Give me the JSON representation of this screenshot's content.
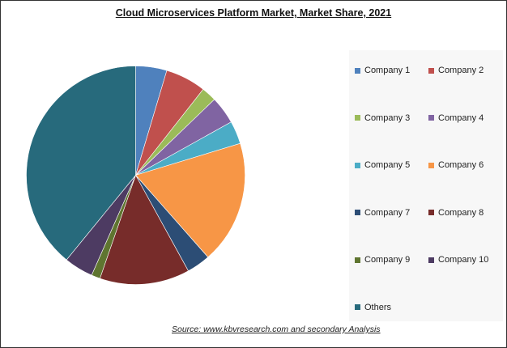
{
  "chart_data": {
    "type": "pie",
    "title": "Cloud Microservices Platform  Market, Market Share, 2021",
    "categories": [
      "Company 1",
      "Company 2",
      "Company 3",
      "Company 4",
      "Company 5",
      "Company 6",
      "Company 7",
      "Company 8",
      "Company 9",
      "Company 10",
      "Others"
    ],
    "values": [
      4.6,
      6.0,
      2.2,
      4.1,
      3.4,
      18.2,
      3.5,
      13.3,
      1.3,
      4.3,
      39.1
    ],
    "unit": "%",
    "colors": [
      "#4f81bd",
      "#c0504d",
      "#9bbb59",
      "#8064a2",
      "#4bacc6",
      "#f79646",
      "#2c4d75",
      "#772c2a",
      "#5f7530",
      "#4d3b62",
      "#276a7c"
    ],
    "legend_placement": "right",
    "start_angle": "top, clockwise"
  },
  "source": "Source:  www.kbvresearch.com  and secondary Analysis"
}
